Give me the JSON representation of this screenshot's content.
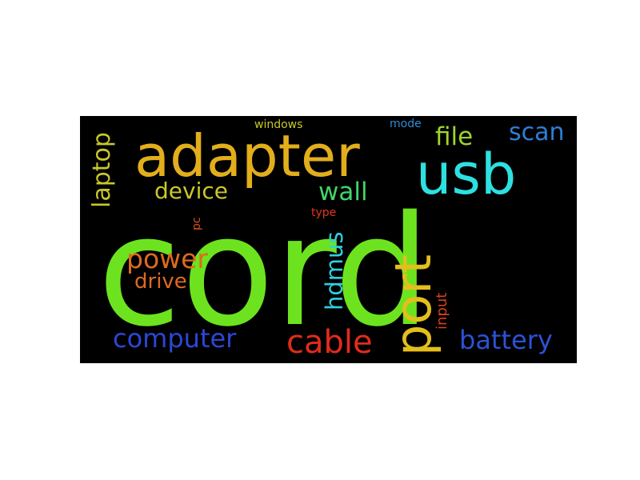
{
  "background_color": "#000000",
  "words": [
    {
      "text": "cord",
      "color": "#6de31f"
    },
    {
      "text": "adapter",
      "color": "#e3ae1c"
    },
    {
      "text": "usb",
      "color": "#2ee0e0"
    },
    {
      "text": "port",
      "color": "#e3bf1c"
    },
    {
      "text": "laptop",
      "color": "#c9c72a"
    },
    {
      "text": "device",
      "color": "#c9c72a"
    },
    {
      "text": "wall",
      "color": "#3fd66a"
    },
    {
      "text": "file",
      "color": "#9fd42b"
    },
    {
      "text": "scan",
      "color": "#2e7fd6"
    },
    {
      "text": "windows",
      "color": "#c9c72a"
    },
    {
      "text": "mode",
      "color": "#2e8cd6"
    },
    {
      "text": "power",
      "color": "#dd6a1f"
    },
    {
      "text": "drive",
      "color": "#dd6a1f"
    },
    {
      "text": "hdmus",
      "color": "#2ed0e0"
    },
    {
      "text": "pc",
      "color": "#d8561c"
    },
    {
      "text": "type",
      "color": "#e3331c"
    },
    {
      "text": "input",
      "color": "#d8401c"
    },
    {
      "text": "computer",
      "color": "#2b47d6"
    },
    {
      "text": "cable",
      "color": "#e32b1c"
    },
    {
      "text": "battery",
      "color": "#2b52d6"
    }
  ]
}
